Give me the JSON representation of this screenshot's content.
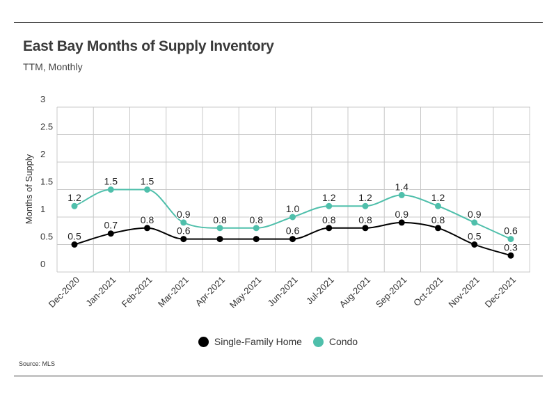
{
  "header": {
    "title": "East Bay Months of Supply Inventory",
    "subtitle": "TTM, Monthly"
  },
  "footer": {
    "source": "Source:  MLS"
  },
  "chart_data": {
    "type": "line",
    "title": "East Bay Months of Supply Inventory",
    "subtitle": "TTM, Monthly",
    "xlabel": "",
    "ylabel": "Months of Supply",
    "ylim": [
      0,
      3
    ],
    "yticks": [
      0,
      0.5,
      1,
      1.5,
      2,
      2.5,
      3
    ],
    "ytick_labels": [
      "0",
      "0.5",
      "1",
      "1.5",
      "2",
      "2.5",
      "3"
    ],
    "grid": true,
    "smooth": true,
    "legend_position": "bottom-center",
    "categories": [
      "Dec-2020",
      "Jan-2021",
      "Feb-2021",
      "Mar-2021",
      "Apr-2021",
      "May-2021",
      "Jun-2021",
      "Jul-2021",
      "Aug-2021",
      "Sep-2021",
      "Oct-2021",
      "Nov-2021",
      "Dec-2021"
    ],
    "series": [
      {
        "name": "Single-Family Home",
        "color": "#000000",
        "values": [
          0.5,
          0.7,
          0.8,
          0.6,
          0.6,
          0.6,
          0.6,
          0.8,
          0.8,
          0.9,
          0.8,
          0.5,
          0.3
        ],
        "labels": [
          "0.5",
          "0.7",
          "0.8",
          "0.6",
          "",
          "",
          "0.6",
          "0.8",
          "0.8",
          "0.9",
          "0.8",
          "0.5",
          "0.3"
        ]
      },
      {
        "name": "Condo",
        "color": "#4fbfab",
        "values": [
          1.2,
          1.5,
          1.5,
          0.9,
          0.8,
          0.8,
          1.0,
          1.2,
          1.2,
          1.4,
          1.2,
          0.9,
          0.6
        ],
        "labels": [
          "1.2",
          "1.5",
          "1.5",
          "0.9",
          "0.8",
          "0.8",
          "1.0",
          "1.2",
          "1.2",
          "1.4",
          "1.2",
          "0.9",
          "0.6"
        ]
      }
    ]
  }
}
